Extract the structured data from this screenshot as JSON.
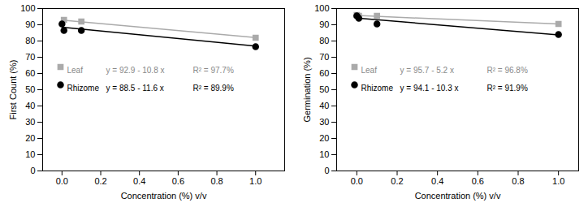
{
  "chart_data": [
    {
      "type": "scatter",
      "x_label": "Concentration (%) v/v",
      "y_label": "First Count (%)",
      "xlim": [
        -0.1,
        1.15
      ],
      "xticks": [
        {
          "value": 0,
          "label": "0.0"
        },
        0.2,
        0.4,
        0.6,
        0.8,
        {
          "value": 1,
          "label": "1.0"
        }
      ],
      "ylim": [
        0,
        100
      ],
      "yticks": [
        0,
        10,
        20,
        30,
        40,
        50,
        60,
        70,
        80,
        90,
        100
      ],
      "grid": false,
      "series": [
        {
          "name": "Leaf",
          "color": "#aaaaaa",
          "marker": "square",
          "x": [
            0.01,
            0.1,
            1.0
          ],
          "values": [
            93,
            92,
            82
          ],
          "fit": {
            "x": [
              0,
              1
            ],
            "values": [
              92.9,
              82.1
            ]
          },
          "equation": "y = 92.9 - 10.8 x",
          "r_squared": "R² = 97.7%"
        },
        {
          "name": "Rhizome",
          "color": "#000000",
          "marker": "circle",
          "x": [
            0,
            0.01,
            0.1,
            1.0
          ],
          "values": [
            90.5,
            86.5,
            86.5,
            76.5
          ],
          "fit": {
            "x": [
              0,
              1
            ],
            "values": [
              88.5,
              76.9
            ]
          },
          "equation": "y = 88.5 - 11.6 x",
          "r_squared": "R² = 89.9%"
        }
      ]
    },
    {
      "type": "scatter",
      "x_label": "Concentration (%) v/v",
      "y_label": "Germination (%)",
      "xlim": [
        -0.1,
        1.1
      ],
      "xticks": [
        {
          "value": 0,
          "label": "0.0"
        },
        0.2,
        0.4,
        0.6,
        0.8,
        {
          "value": 1,
          "label": "1.0"
        }
      ],
      "ylim": [
        0,
        100
      ],
      "yticks": [
        0,
        10,
        20,
        30,
        40,
        50,
        60,
        70,
        80,
        90,
        100
      ],
      "grid": false,
      "series": [
        {
          "name": "Leaf",
          "color": "#aaaaaa",
          "marker": "square",
          "x": [
            0,
            0.01,
            0.1,
            1.0
          ],
          "values": [
            96,
            95.5,
            95.5,
            90.5
          ],
          "fit": {
            "x": [
              0,
              1
            ],
            "values": [
              95.7,
              90.5
            ]
          },
          "equation": "y = 95.7 - 5.2 x",
          "r_squared": "R² = 96.8%"
        },
        {
          "name": "Rhizome",
          "color": "#000000",
          "marker": "circle",
          "x": [
            0,
            0.01,
            0.1,
            1.0
          ],
          "values": [
            95.5,
            94,
            90.5,
            84
          ],
          "fit": {
            "x": [
              0,
              1
            ],
            "values": [
              94.1,
              83.8
            ]
          },
          "equation": "y = 94.1 - 10.3 x",
          "r_squared": "R² = 91.9%"
        }
      ]
    }
  ]
}
